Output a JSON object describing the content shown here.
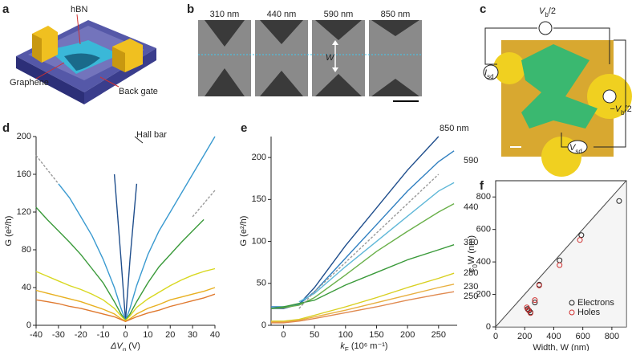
{
  "panel_labels": [
    "a",
    "b",
    "c",
    "d",
    "e",
    "f"
  ],
  "panel_a": {
    "labels": [
      "hBN",
      "Graphene",
      "Back gate"
    ]
  },
  "panel_b": {
    "widths": [
      "310 nm",
      "440 nm",
      "590 nm",
      "850 nm"
    ],
    "marker": "W"
  },
  "panel_c": {
    "labels": [
      {
        "main": "V",
        "sub": "b",
        "unit": "/2"
      },
      {
        "main": "I",
        "sub": "sd"
      },
      {
        "main": "−V",
        "sub": "b",
        "unit": "/2"
      },
      {
        "main": "V",
        "sub": "sd"
      }
    ]
  },
  "chart_data": [
    {
      "type": "line",
      "ylabel": "G (e²/h)",
      "xlabel": {
        "main": "ΔV",
        "sub": "g",
        "unit": " (V)"
      },
      "xlim": [
        -40,
        40
      ],
      "ylim": [
        0,
        200
      ],
      "xticks": [
        -40,
        -30,
        -20,
        -10,
        0,
        10,
        20,
        30,
        40
      ],
      "yticks": [
        0,
        40,
        80,
        120,
        160,
        200
      ],
      "annotation": "Hall bar",
      "x": [
        -40,
        -35,
        -30,
        -25,
        -20,
        -15,
        -10,
        -5,
        -2,
        0,
        2,
        5,
        10,
        15,
        20,
        25,
        30,
        35,
        40
      ],
      "series": [
        {
          "color": "#1f4e8c",
          "values": [
            null,
            null,
            null,
            null,
            null,
            null,
            null,
            160,
            70,
            5,
            70,
            150,
            null,
            null,
            null,
            null,
            null,
            null,
            null
          ]
        },
        {
          "color": "#3a9ad0",
          "values": [
            null,
            null,
            150,
            135,
            115,
            95,
            70,
            40,
            18,
            5,
            18,
            42,
            75,
            100,
            120,
            140,
            160,
            180,
            200
          ]
        },
        {
          "color": "#3a9a3a",
          "values": [
            125,
            112,
            100,
            88,
            75,
            60,
            45,
            25,
            12,
            5,
            12,
            25,
            45,
            62,
            75,
            88,
            100,
            112,
            null
          ]
        },
        {
          "color": "#d8d820",
          "values": [
            57,
            52,
            47,
            42,
            38,
            33,
            27,
            18,
            10,
            5,
            10,
            19,
            28,
            35,
            42,
            48,
            53,
            57,
            60
          ]
        },
        {
          "color": "#e8b020",
          "values": [
            37,
            34,
            31,
            28,
            25,
            21,
            17,
            12,
            7,
            4,
            7,
            12,
            18,
            22,
            27,
            30,
            33,
            36,
            40
          ]
        },
        {
          "color": "#e07a30",
          "values": [
            27,
            25,
            23,
            20,
            18,
            15,
            12,
            9,
            6,
            4,
            6,
            9,
            13,
            16,
            20,
            23,
            26,
            29,
            33
          ]
        },
        {
          "color": "#999999",
          "dash": true,
          "values": [
            180,
            165,
            150,
            null,
            null,
            null,
            null,
            null,
            null,
            null,
            null,
            null,
            null,
            null,
            null,
            null,
            null,
            null,
            null
          ]
        },
        {
          "color": "#999999",
          "dash": true,
          "values": [
            null,
            null,
            null,
            null,
            null,
            null,
            null,
            null,
            null,
            null,
            null,
            null,
            null,
            null,
            null,
            null,
            115,
            129,
            143
          ]
        }
      ]
    },
    {
      "type": "line",
      "ylabel": "G (e²/h)",
      "xlabel": {
        "main": "k",
        "sub": "F",
        "unit": " (10⁶ m⁻¹)"
      },
      "xlim": [
        -20,
        280
      ],
      "ylim": [
        0,
        225
      ],
      "xticks": [
        0,
        50,
        100,
        150,
        200,
        250
      ],
      "yticks": [
        0,
        50,
        100,
        150,
        200
      ],
      "curve_labels": [
        "850 nm",
        "590",
        "440",
        "310",
        "280",
        "230",
        "250"
      ],
      "x": [
        -20,
        0,
        25,
        50,
        100,
        150,
        200,
        250,
        275
      ],
      "series": [
        {
          "color": "#1f4e8c",
          "values": [
            20,
            20,
            25,
            45,
            95,
            140,
            185,
            225,
            null
          ]
        },
        {
          "color": "#2f7fc0",
          "values": [
            22,
            22,
            25,
            40,
            80,
            120,
            160,
            195,
            208
          ]
        },
        {
          "color": "#60b8d8",
          "values": [
            null,
            null,
            28,
            38,
            70,
            100,
            130,
            160,
            170
          ]
        },
        {
          "color": "#6ab04a",
          "values": [
            20,
            21,
            24,
            33,
            60,
            88,
            112,
            135,
            145
          ]
        },
        {
          "color": "#3a9a3a",
          "values": [
            20,
            22,
            26,
            30,
            48,
            63,
            78,
            90,
            96
          ]
        },
        {
          "color": "#d8d020",
          "values": [
            5,
            5,
            7,
            12,
            22,
            33,
            45,
            56,
            62
          ]
        },
        {
          "color": "#e8b040",
          "values": [
            4,
            4,
            6,
            10,
            18,
            27,
            36,
            45,
            49
          ]
        },
        {
          "color": "#e08a50",
          "values": [
            3,
            3,
            5,
            8,
            15,
            22,
            30,
            37,
            40
          ]
        },
        {
          "color": "#999999",
          "dash": true,
          "values": [
            null,
            null,
            20,
            40,
            75,
            110,
            145,
            180,
            null
          ]
        }
      ]
    },
    {
      "type": "scatter",
      "xlabel": "Width, W (nm)",
      "ylabel": {
        "main": "c",
        "sub": "0",
        "unit": "W (nm)"
      },
      "xlim": [
        0,
        900
      ],
      "ylim": [
        0,
        900
      ],
      "xticks": [
        0,
        200,
        400,
        600,
        800
      ],
      "yticks": [
        0,
        200,
        400,
        600,
        800
      ],
      "diagonal": true,
      "legend": "lower right",
      "series": [
        {
          "name": "Electrons",
          "color": "#222222",
          "x": [
            220,
            230,
            240,
            270,
            300,
            440,
            590,
            850
          ],
          "values": [
            110,
            100,
            90,
            150,
            260,
            410,
            565,
            775
          ]
        },
        {
          "name": "Holes",
          "color": "#d03030",
          "x": [
            215,
            225,
            240,
            270,
            300,
            440,
            580
          ],
          "values": [
            120,
            105,
            85,
            165,
            255,
            380,
            535
          ]
        }
      ]
    }
  ]
}
